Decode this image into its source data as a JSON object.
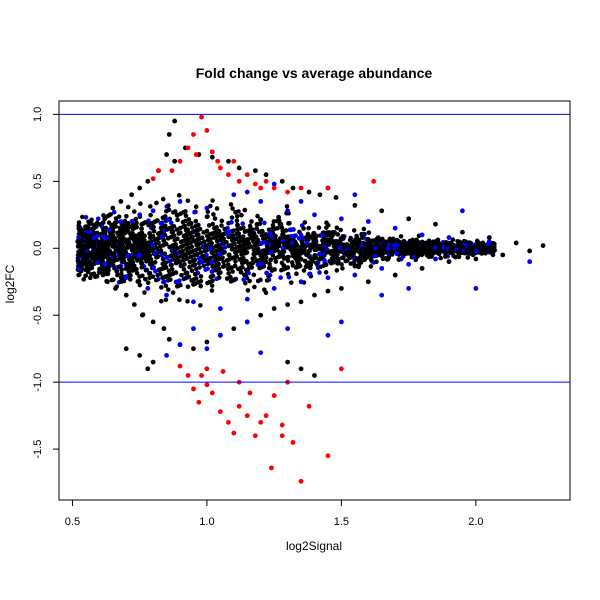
{
  "chart_data": {
    "type": "scatter",
    "title": "Fold change vs average abundance",
    "xlabel": "log2Signal",
    "ylabel": "log2FC",
    "xlim": [
      0.45,
      2.35
    ],
    "ylim": [
      -1.88,
      1.1
    ],
    "xticks": [
      "0.5",
      "1.0",
      "1.5",
      "2.0"
    ],
    "yticks": [
      "-1.5",
      "-1.0",
      "-0.5",
      "0.0",
      "0.5",
      "1.0"
    ],
    "hlines": [
      1.0,
      -1.0
    ],
    "grid": false,
    "legend": "none",
    "colors": {
      "background": "#000000",
      "other": "#0000ff",
      "significant": "#ff0000",
      "line": "#0000ff"
    },
    "series": [
      {
        "color": "#000000",
        "points": [
          [
            0.52,
            0.05
          ],
          [
            0.53,
            -0.05
          ],
          [
            0.55,
            0.1
          ],
          [
            0.56,
            -0.12
          ],
          [
            0.58,
            0.15
          ],
          [
            0.6,
            -0.18
          ],
          [
            0.62,
            0.22
          ],
          [
            0.63,
            -0.25
          ],
          [
            0.65,
            0.3
          ],
          [
            0.66,
            -0.3
          ],
          [
            0.68,
            0.35
          ],
          [
            0.7,
            -0.35
          ],
          [
            0.72,
            0.4
          ],
          [
            0.73,
            -0.42
          ],
          [
            0.75,
            0.45
          ],
          [
            0.76,
            -0.5
          ],
          [
            0.78,
            0.5
          ],
          [
            0.8,
            -0.55
          ],
          [
            0.82,
            0.58
          ],
          [
            0.84,
            -0.6
          ],
          [
            0.85,
            0.7
          ],
          [
            0.86,
            -0.68
          ],
          [
            0.88,
            0.65
          ],
          [
            0.9,
            -0.72
          ],
          [
            0.92,
            0.75
          ],
          [
            0.95,
            -0.75
          ],
          [
            0.97,
            0.7
          ],
          [
            1.0,
            -0.7
          ],
          [
            1.02,
            0.68
          ],
          [
            1.05,
            -0.65
          ],
          [
            1.08,
            0.65
          ],
          [
            1.1,
            -0.6
          ],
          [
            1.12,
            0.6
          ],
          [
            1.15,
            -0.55
          ],
          [
            1.18,
            0.58
          ],
          [
            1.2,
            -0.5
          ],
          [
            1.22,
            0.55
          ],
          [
            1.25,
            -0.45
          ],
          [
            1.28,
            0.5
          ],
          [
            1.3,
            -0.42
          ],
          [
            1.32,
            0.45
          ],
          [
            1.35,
            -0.4
          ],
          [
            1.38,
            0.42
          ],
          [
            1.4,
            -0.35
          ],
          [
            1.42,
            0.4
          ],
          [
            1.45,
            -0.32
          ],
          [
            1.48,
            0.38
          ],
          [
            1.5,
            -0.3
          ],
          [
            1.55,
            0.32
          ],
          [
            1.6,
            -0.25
          ],
          [
            1.65,
            0.28
          ],
          [
            1.7,
            -0.2
          ],
          [
            1.75,
            0.22
          ],
          [
            1.8,
            -0.15
          ],
          [
            1.85,
            0.18
          ],
          [
            1.9,
            -0.1
          ],
          [
            1.95,
            0.12
          ],
          [
            2.0,
            -0.08
          ],
          [
            2.05,
            0.08
          ],
          [
            2.1,
            -0.05
          ],
          [
            2.15,
            0.04
          ],
          [
            2.2,
            -0.02
          ],
          [
            2.25,
            0.02
          ],
          [
            0.7,
            -0.75
          ],
          [
            0.75,
            -0.8
          ],
          [
            0.8,
            -0.85
          ],
          [
            0.78,
            -0.9
          ],
          [
            0.86,
            0.85
          ],
          [
            0.88,
            0.95
          ],
          [
            1.3,
            -0.85
          ],
          [
            1.35,
            -0.9
          ],
          [
            1.4,
            -0.95
          ]
        ]
      },
      {
        "color": "#0000ff",
        "points": [
          [
            0.58,
            0.08
          ],
          [
            0.62,
            -0.12
          ],
          [
            0.68,
            0.2
          ],
          [
            0.7,
            -0.22
          ],
          [
            0.75,
            0.25
          ],
          [
            0.78,
            -0.3
          ],
          [
            0.8,
            0.28
          ],
          [
            0.85,
            -0.35
          ],
          [
            0.9,
            0.35
          ],
          [
            0.95,
            -0.4
          ],
          [
            1.0,
            0.3
          ],
          [
            1.05,
            -0.45
          ],
          [
            1.1,
            0.4
          ],
          [
            1.15,
            -0.38
          ],
          [
            1.2,
            0.35
          ],
          [
            1.25,
            -0.3
          ],
          [
            1.3,
            0.28
          ],
          [
            1.35,
            -0.25
          ],
          [
            1.4,
            0.25
          ],
          [
            1.45,
            -0.22
          ],
          [
            1.5,
            0.22
          ],
          [
            1.55,
            -0.2
          ],
          [
            1.6,
            0.2
          ],
          [
            1.65,
            -0.15
          ],
          [
            1.7,
            0.15
          ],
          [
            1.75,
            -0.12
          ],
          [
            1.8,
            0.1
          ],
          [
            1.85,
            -0.08
          ],
          [
            1.9,
            0.08
          ],
          [
            2.05,
            0.05
          ],
          [
            0.85,
            -0.8
          ],
          [
            0.9,
            -0.72
          ],
          [
            0.95,
            -0.6
          ],
          [
            1.0,
            -0.75
          ],
          [
            1.05,
            -0.65
          ],
          [
            1.15,
            -0.55
          ],
          [
            1.2,
            -0.78
          ],
          [
            1.3,
            -0.6
          ],
          [
            1.5,
            -0.55
          ],
          [
            1.45,
            -0.65
          ],
          [
            1.65,
            -0.35
          ],
          [
            1.75,
            -0.3
          ],
          [
            2.0,
            -0.3
          ],
          [
            2.2,
            -0.1
          ],
          [
            1.95,
            0.28
          ],
          [
            1.55,
            0.4
          ],
          [
            1.45,
            0.45
          ],
          [
            1.35,
            0.35
          ],
          [
            1.25,
            0.48
          ],
          [
            1.15,
            0.42
          ]
        ]
      },
      {
        "color": "#ff0000",
        "points": [
          [
            0.87,
            0.58
          ],
          [
            0.9,
            0.65
          ],
          [
            0.93,
            0.75
          ],
          [
            0.96,
            0.7
          ],
          [
            0.98,
            0.98
          ],
          [
            1.0,
            0.88
          ],
          [
            1.02,
            0.72
          ],
          [
            1.05,
            0.6
          ],
          [
            1.08,
            0.55
          ],
          [
            1.1,
            0.65
          ],
          [
            1.12,
            0.5
          ],
          [
            1.15,
            0.55
          ],
          [
            1.18,
            0.48
          ],
          [
            1.22,
            0.5
          ],
          [
            1.25,
            0.45
          ],
          [
            1.3,
            0.42
          ],
          [
            1.35,
            0.45
          ],
          [
            1.45,
            0.45
          ],
          [
            1.62,
            0.5
          ],
          [
            0.82,
            0.58
          ],
          [
            0.8,
            0.52
          ],
          [
            0.95,
            0.85
          ],
          [
            1.04,
            0.65
          ],
          [
            1.2,
            0.45
          ],
          [
            0.9,
            -0.88
          ],
          [
            0.93,
            -0.95
          ],
          [
            0.95,
            -1.05
          ],
          [
            0.97,
            -1.15
          ],
          [
            1.0,
            -0.9
          ],
          [
            1.02,
            -1.08
          ],
          [
            1.05,
            -1.22
          ],
          [
            1.06,
            -0.92
          ],
          [
            1.08,
            -1.3
          ],
          [
            1.1,
            -1.38
          ],
          [
            1.12,
            -1.0
          ],
          [
            1.15,
            -1.25
          ],
          [
            1.18,
            -1.4
          ],
          [
            1.2,
            -1.3
          ],
          [
            1.22,
            -1.25
          ],
          [
            1.25,
            -1.1
          ],
          [
            1.28,
            -1.32
          ],
          [
            1.3,
            -1.0
          ],
          [
            1.32,
            -1.45
          ],
          [
            1.35,
            -1.74
          ],
          [
            1.24,
            -1.64
          ],
          [
            1.28,
            -1.4
          ],
          [
            1.45,
            -1.55
          ],
          [
            1.5,
            -0.9
          ],
          [
            1.38,
            -1.18
          ],
          [
            1.0,
            -1.02
          ],
          [
            0.98,
            -0.95
          ],
          [
            1.12,
            -1.18
          ],
          [
            1.16,
            -1.08
          ]
        ]
      }
    ]
  }
}
